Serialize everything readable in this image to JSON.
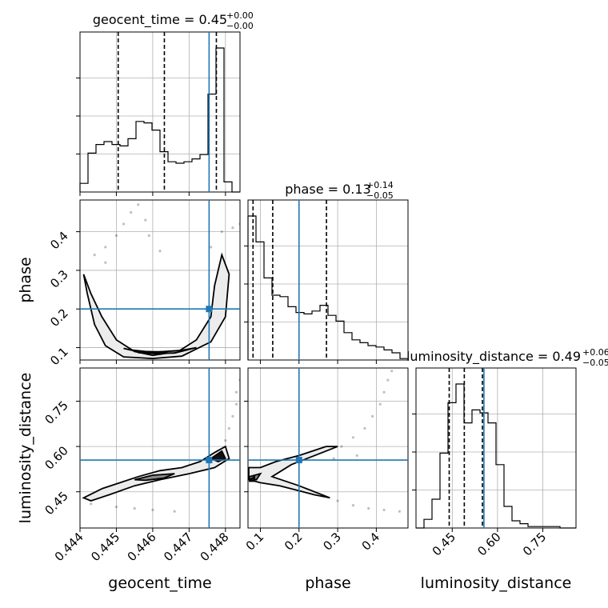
{
  "chart_data": {
    "type": "corner",
    "parameters": [
      "geocent_time",
      "phase",
      "luminosity_distance"
    ],
    "truths": {
      "geocent_time": 0.44755,
      "phase": 0.2,
      "luminosity_distance": 0.555
    },
    "titles": [
      {
        "param": "geocent_time",
        "text": "geocent_time = 0.45",
        "sup": "+0.00",
        "sub": "−0.00"
      },
      {
        "param": "phase",
        "text": "phase = 0.13",
        "sup": "+0.14",
        "sub": "−0.05"
      },
      {
        "param": "luminosity_distance",
        "text": "luminosity_distance = 0.49",
        "sup": "+0.06",
        "sub": "−0.05"
      }
    ],
    "axes": {
      "geocent_time": {
        "label": "geocent_time",
        "range": [
          0.444,
          0.4484
        ],
        "ticks": [
          "0.444",
          "0.445",
          "0.446",
          "0.447",
          "0.448"
        ],
        "tick_values": [
          0.444,
          0.445,
          0.446,
          0.447,
          0.448
        ]
      },
      "phase": {
        "label": "phase",
        "range": [
          0.068,
          0.482
        ],
        "ticks": [
          "0.1",
          "0.2",
          "0.3",
          "0.4"
        ],
        "tick_values": [
          0.1,
          0.2,
          0.3,
          0.4
        ]
      },
      "luminosity_distance": {
        "label": "luminosity_distance",
        "range": [
          0.33,
          0.86
        ],
        "ticks": [
          "0.45",
          "0.60",
          "0.75"
        ],
        "tick_values": [
          0.45,
          0.6,
          0.75
        ]
      }
    },
    "histograms": [
      {
        "param": "geocent_time",
        "edges": [
          0.444,
          0.44422,
          0.44444,
          0.44466,
          0.44488,
          0.4451,
          0.44532,
          0.44554,
          0.44576,
          0.44598,
          0.4462,
          0.44642,
          0.44664,
          0.44686,
          0.44708,
          0.4473,
          0.44752,
          0.44774,
          0.44796,
          0.44818,
          0.4484
        ],
        "counts": [
          0.06,
          0.27,
          0.33,
          0.35,
          0.33,
          0.32,
          0.37,
          0.49,
          0.48,
          0.43,
          0.28,
          0.21,
          0.2,
          0.21,
          0.23,
          0.26,
          0.68,
          1.0,
          0.07,
          0.0
        ],
        "quantiles": [
          0.44505,
          0.44632,
          0.44775
        ]
      },
      {
        "param": "phase",
        "edges": [
          0.068,
          0.0887,
          0.1094,
          0.1301,
          0.1508,
          0.1715,
          0.1922,
          0.2129,
          0.2336,
          0.2543,
          0.275,
          0.2957,
          0.3164,
          0.3371,
          0.3578,
          0.3785,
          0.3992,
          0.4199,
          0.4406,
          0.4613,
          0.482
        ],
        "counts": [
          1.0,
          0.82,
          0.57,
          0.45,
          0.44,
          0.37,
          0.33,
          0.32,
          0.34,
          0.38,
          0.31,
          0.27,
          0.19,
          0.14,
          0.12,
          0.1,
          0.09,
          0.07,
          0.05,
          0.01
        ],
        "quantiles": [
          0.081,
          0.132,
          0.271
        ]
      },
      {
        "param": "luminosity_distance",
        "edges": [
          0.33,
          0.3565,
          0.383,
          0.4095,
          0.436,
          0.4625,
          0.489,
          0.5155,
          0.542,
          0.5685,
          0.595,
          0.6215,
          0.648,
          0.6745,
          0.701,
          0.7275,
          0.754,
          0.7805,
          0.807,
          0.8335,
          0.86
        ],
        "counts": [
          0.0,
          0.06,
          0.2,
          0.52,
          0.87,
          1.0,
          0.73,
          0.82,
          0.8,
          0.73,
          0.44,
          0.15,
          0.05,
          0.03,
          0.01,
          0.01,
          0.01,
          0.01,
          0.0,
          0.0
        ],
        "quantiles": [
          0.44,
          0.49,
          0.55
        ]
      }
    ],
    "contours": [
      {
        "x": "geocent_time",
        "y": "phase",
        "outer": [
          [
            0.4441,
            0.29
          ],
          [
            0.4443,
            0.24
          ],
          [
            0.4446,
            0.18
          ],
          [
            0.445,
            0.12
          ],
          [
            0.4455,
            0.09
          ],
          [
            0.446,
            0.08
          ],
          [
            0.4467,
            0.09
          ],
          [
            0.4472,
            0.12
          ],
          [
            0.4476,
            0.18
          ],
          [
            0.4477,
            0.26
          ],
          [
            0.4479,
            0.34
          ],
          [
            0.4481,
            0.29
          ],
          [
            0.448,
            0.18
          ],
          [
            0.4476,
            0.115
          ],
          [
            0.4468,
            0.078
          ],
          [
            0.446,
            0.072
          ],
          [
            0.4452,
            0.076
          ],
          [
            0.4447,
            0.105
          ],
          [
            0.4444,
            0.16
          ],
          [
            0.4442,
            0.24
          ]
        ],
        "inner": [
          [
            0.4452,
            0.098
          ],
          [
            0.4458,
            0.085
          ],
          [
            0.4466,
            0.086
          ],
          [
            0.4472,
            0.1
          ],
          [
            0.4468,
            0.093
          ],
          [
            0.446,
            0.088
          ],
          [
            0.4454,
            0.094
          ]
        ],
        "core": [
          [
            0.4456,
            0.087
          ],
          [
            0.4462,
            0.084
          ],
          [
            0.4464,
            0.089
          ],
          [
            0.4458,
            0.09
          ]
        ]
      },
      {
        "x": "geocent_time",
        "y": "luminosity_distance",
        "outer": [
          [
            0.4441,
            0.43
          ],
          [
            0.4446,
            0.46
          ],
          [
            0.4451,
            0.48
          ],
          [
            0.4456,
            0.5
          ],
          [
            0.4462,
            0.52
          ],
          [
            0.4468,
            0.53
          ],
          [
            0.4473,
            0.55
          ],
          [
            0.4477,
            0.58
          ],
          [
            0.448,
            0.6
          ],
          [
            0.4481,
            0.56
          ],
          [
            0.4477,
            0.53
          ],
          [
            0.447,
            0.51
          ],
          [
            0.4462,
            0.49
          ],
          [
            0.4455,
            0.47
          ],
          [
            0.4448,
            0.44
          ],
          [
            0.4443,
            0.42
          ]
        ],
        "inner": [
          [
            0.4455,
            0.49
          ],
          [
            0.446,
            0.505
          ],
          [
            0.4466,
            0.51
          ],
          [
            0.4463,
            0.495
          ],
          [
            0.4458,
            0.488
          ]
        ],
        "core": [
          [
            0.4476,
            0.56
          ],
          [
            0.4479,
            0.585
          ],
          [
            0.448,
            0.56
          ],
          [
            0.4478,
            0.55
          ]
        ]
      },
      {
        "x": "phase",
        "y": "luminosity_distance",
        "outer": [
          [
            0.07,
            0.53
          ],
          [
            0.1,
            0.53
          ],
          [
            0.14,
            0.55
          ],
          [
            0.2,
            0.57
          ],
          [
            0.27,
            0.6
          ],
          [
            0.3,
            0.6
          ],
          [
            0.26,
            0.58
          ],
          [
            0.18,
            0.54
          ],
          [
            0.13,
            0.5
          ],
          [
            0.2,
            0.47
          ],
          [
            0.28,
            0.43
          ],
          [
            0.24,
            0.44
          ],
          [
            0.15,
            0.47
          ],
          [
            0.1,
            0.48
          ],
          [
            0.07,
            0.49
          ]
        ],
        "inner": [
          [
            0.072,
            0.5
          ],
          [
            0.1,
            0.51
          ],
          [
            0.09,
            0.49
          ],
          [
            0.072,
            0.49
          ]
        ],
        "core": [
          [
            0.072,
            0.49
          ],
          [
            0.085,
            0.5
          ],
          [
            0.085,
            0.485
          ],
          [
            0.072,
            0.485
          ]
        ]
      }
    ],
    "scatter_trails": [
      {
        "x": "geocent_time",
        "y": "phase",
        "points": [
          [
            0.4444,
            0.34
          ],
          [
            0.4447,
            0.36
          ],
          [
            0.445,
            0.39
          ],
          [
            0.4452,
            0.42
          ],
          [
            0.4454,
            0.45
          ],
          [
            0.4456,
            0.47
          ],
          [
            0.4458,
            0.43
          ],
          [
            0.4459,
            0.39
          ],
          [
            0.4476,
            0.36
          ],
          [
            0.4479,
            0.4
          ],
          [
            0.4482,
            0.41
          ],
          [
            0.4484,
            0.42
          ],
          [
            0.4447,
            0.32
          ],
          [
            0.4462,
            0.35
          ]
        ]
      },
      {
        "x": "geocent_time",
        "y": "luminosity_distance",
        "points": [
          [
            0.448,
            0.62
          ],
          [
            0.4481,
            0.66
          ],
          [
            0.4482,
            0.7
          ],
          [
            0.4483,
            0.74
          ],
          [
            0.4483,
            0.78
          ],
          [
            0.4484,
            0.82
          ],
          [
            0.445,
            0.4
          ],
          [
            0.4455,
            0.395
          ],
          [
            0.446,
            0.39
          ],
          [
            0.4466,
            0.385
          ],
          [
            0.4443,
            0.41
          ]
        ]
      },
      {
        "x": "phase",
        "y": "luminosity_distance",
        "points": [
          [
            0.31,
            0.6
          ],
          [
            0.34,
            0.63
          ],
          [
            0.37,
            0.66
          ],
          [
            0.39,
            0.7
          ],
          [
            0.41,
            0.74
          ],
          [
            0.42,
            0.78
          ],
          [
            0.43,
            0.82
          ],
          [
            0.44,
            0.85
          ],
          [
            0.3,
            0.42
          ],
          [
            0.34,
            0.405
          ],
          [
            0.38,
            0.395
          ],
          [
            0.42,
            0.39
          ],
          [
            0.46,
            0.385
          ],
          [
            0.35,
            0.57
          ],
          [
            0.29,
            0.56
          ]
        ]
      }
    ]
  }
}
